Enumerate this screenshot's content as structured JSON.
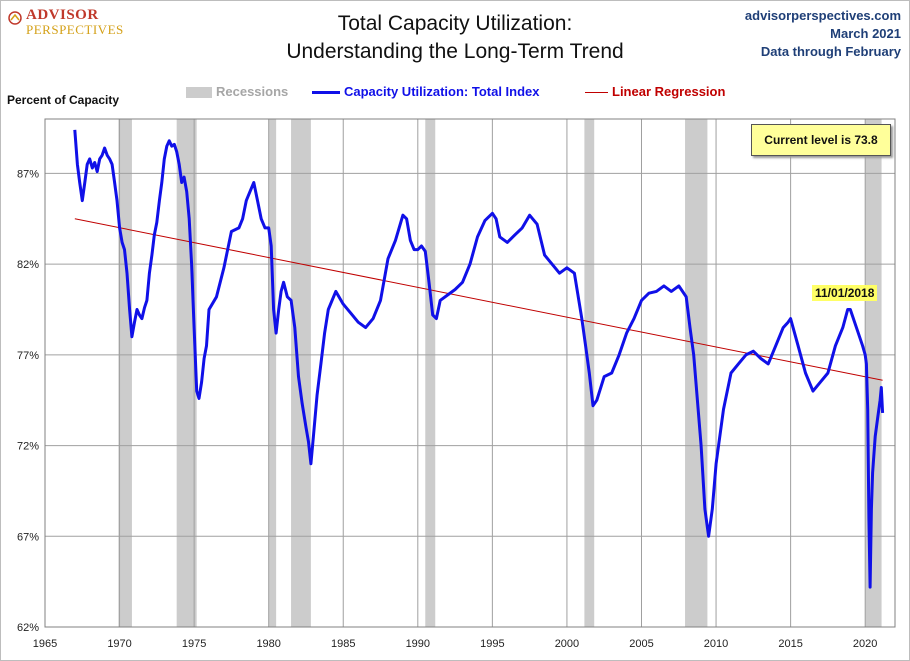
{
  "brand": {
    "line1": "ADVISOR",
    "line2": "PERSPECTIVES"
  },
  "source": {
    "site": "advisorperspectives.com",
    "date": "March 2021",
    "note": "Data through February"
  },
  "callout": "Current level is 73.8",
  "colors": {
    "line": "#1010e8",
    "regression": "#c00000",
    "recession": "#cccccc",
    "grid": "#a0a0a0",
    "callout_bg": "#ffff9a"
  },
  "chart_data": {
    "type": "line",
    "title": "Total Capacity Utilization:",
    "subtitle": "Understanding  the Long-Term Trend",
    "ylabel": "Percent of Capacity",
    "xlabel": "",
    "x_unit": "year (decimal)",
    "xlim": [
      1965,
      2022
    ],
    "ylim": [
      62,
      90
    ],
    "x_ticks": [
      1965,
      1970,
      1975,
      1980,
      1985,
      1990,
      1995,
      2000,
      2005,
      2010,
      2015,
      2020
    ],
    "y_ticks": [
      62,
      67,
      72,
      77,
      82,
      87
    ],
    "y_tick_labels": [
      "62%",
      "67%",
      "72%",
      "77%",
      "82%",
      "87%"
    ],
    "grid": true,
    "legend": {
      "position": "top",
      "entries": [
        "Recessions",
        "Capacity Utilization: Total Index",
        "Linear Regression"
      ]
    },
    "recessions": [
      [
        1969.92,
        1970.83
      ],
      [
        1973.83,
        1975.17
      ],
      [
        1980.0,
        1980.5
      ],
      [
        1981.5,
        1982.83
      ],
      [
        1990.5,
        1991.17
      ],
      [
        2001.17,
        2001.83
      ],
      [
        2007.92,
        2009.42
      ],
      [
        2020.0,
        2021.1
      ]
    ],
    "regression": {
      "x": [
        1967.0,
        2021.17
      ],
      "y": [
        84.5,
        75.6
      ]
    },
    "series": [
      {
        "name": "Capacity Utilization: Total Index",
        "x": [
          1967.0,
          1967.17,
          1967.33,
          1967.5,
          1967.67,
          1967.83,
          1968.0,
          1968.17,
          1968.33,
          1968.5,
          1968.67,
          1968.83,
          1969.0,
          1969.17,
          1969.33,
          1969.5,
          1969.67,
          1969.83,
          1970.0,
          1970.17,
          1970.33,
          1970.5,
          1970.67,
          1970.83,
          1971.0,
          1971.17,
          1971.33,
          1971.5,
          1971.67,
          1971.83,
          1972.0,
          1972.17,
          1972.33,
          1972.5,
          1972.67,
          1972.83,
          1973.0,
          1973.17,
          1973.33,
          1973.5,
          1973.67,
          1973.83,
          1974.0,
          1974.17,
          1974.33,
          1974.5,
          1974.67,
          1974.83,
          1975.0,
          1975.17,
          1975.33,
          1975.5,
          1975.67,
          1975.83,
          1976.0,
          1976.5,
          1977.0,
          1977.5,
          1978.0,
          1978.25,
          1978.5,
          1978.75,
          1979.0,
          1979.25,
          1979.5,
          1979.75,
          1980.0,
          1980.17,
          1980.33,
          1980.5,
          1980.67,
          1980.83,
          1981.0,
          1981.25,
          1981.5,
          1981.75,
          1982.0,
          1982.25,
          1982.5,
          1982.67,
          1982.83,
          1983.0,
          1983.25,
          1983.5,
          1983.75,
          1984.0,
          1984.5,
          1985.0,
          1985.5,
          1986.0,
          1986.5,
          1987.0,
          1987.5,
          1988.0,
          1988.5,
          1989.0,
          1989.25,
          1989.5,
          1989.75,
          1990.0,
          1990.25,
          1990.5,
          1990.75,
          1991.0,
          1991.25,
          1991.5,
          1992.0,
          1992.5,
          1993.0,
          1993.5,
          1994.0,
          1994.5,
          1995.0,
          1995.25,
          1995.5,
          1996.0,
          1996.5,
          1997.0,
          1997.5,
          1998.0,
          1998.5,
          1999.0,
          1999.5,
          2000.0,
          2000.5,
          2001.0,
          2001.25,
          2001.5,
          2001.75,
          2002.0,
          2002.5,
          2003.0,
          2003.5,
          2004.0,
          2004.5,
          2005.0,
          2005.5,
          2006.0,
          2006.5,
          2007.0,
          2007.5,
          2008.0,
          2008.25,
          2008.5,
          2008.75,
          2009.0,
          2009.25,
          2009.5,
          2009.75,
          2010.0,
          2010.5,
          2011.0,
          2011.5,
          2012.0,
          2012.5,
          2013.0,
          2013.5,
          2014.0,
          2014.5,
          2014.83,
          2015.0,
          2015.5,
          2016.0,
          2016.5,
          2017.0,
          2017.5,
          2018.0,
          2018.5,
          2018.83,
          2019.0,
          2019.5,
          2019.83,
          2020.0,
          2020.08,
          2020.17,
          2020.25,
          2020.33,
          2020.42,
          2020.5,
          2020.67,
          2020.83,
          2021.0,
          2021.08,
          2021.17
        ],
        "values": [
          89.4,
          87.5,
          86.5,
          85.5,
          86.5,
          87.5,
          87.8,
          87.3,
          87.6,
          87.1,
          87.8,
          88.0,
          88.4,
          88.0,
          87.8,
          87.5,
          86.5,
          85.5,
          84.0,
          83.2,
          82.8,
          81.5,
          79.5,
          78.0,
          78.8,
          79.5,
          79.2,
          79.0,
          79.6,
          80.0,
          81.5,
          82.5,
          83.6,
          84.3,
          85.5,
          86.5,
          87.8,
          88.5,
          88.8,
          88.5,
          88.6,
          88.2,
          87.5,
          86.5,
          86.8,
          86.0,
          84.5,
          82.0,
          78.5,
          75.0,
          74.6,
          75.5,
          76.8,
          77.5,
          79.5,
          80.2,
          81.8,
          83.8,
          84.0,
          84.5,
          85.5,
          86.0,
          86.5,
          85.5,
          84.5,
          84.0,
          84.0,
          83.0,
          79.5,
          78.2,
          79.5,
          80.5,
          81.0,
          80.2,
          80.0,
          78.5,
          75.8,
          74.3,
          73.0,
          72.2,
          71.0,
          72.5,
          74.8,
          76.5,
          78.2,
          79.5,
          80.5,
          79.8,
          79.3,
          78.8,
          78.5,
          79.0,
          80.0,
          82.3,
          83.3,
          84.7,
          84.5,
          83.3,
          82.8,
          82.8,
          83.0,
          82.7,
          81.0,
          79.2,
          79.0,
          80.0,
          80.3,
          80.6,
          81.0,
          82.0,
          83.5,
          84.4,
          84.8,
          84.5,
          83.5,
          83.2,
          83.6,
          84.0,
          84.7,
          84.2,
          82.5,
          82.0,
          81.5,
          81.8,
          81.5,
          79.0,
          77.5,
          76.0,
          74.2,
          74.5,
          75.8,
          76.0,
          77.0,
          78.2,
          79.0,
          80.0,
          80.4,
          80.5,
          80.8,
          80.5,
          80.8,
          80.2,
          78.5,
          77.0,
          74.5,
          72.0,
          68.5,
          67.0,
          68.5,
          71.0,
          74.0,
          76.0,
          76.5,
          77.0,
          77.2,
          76.8,
          76.5,
          77.5,
          78.5,
          78.8,
          79.0,
          77.5,
          76.0,
          75.0,
          75.5,
          76.0,
          77.5,
          78.5,
          79.5,
          79.5,
          78.3,
          77.5,
          77.0,
          76.5,
          74.0,
          68.0,
          64.2,
          68.5,
          70.5,
          72.5,
          73.5,
          74.5,
          75.2,
          73.8
        ]
      }
    ],
    "annotations": [
      {
        "label": "11/01/2018",
        "x": 2018.83,
        "y": 79.5
      }
    ],
    "current_value": 73.8
  }
}
